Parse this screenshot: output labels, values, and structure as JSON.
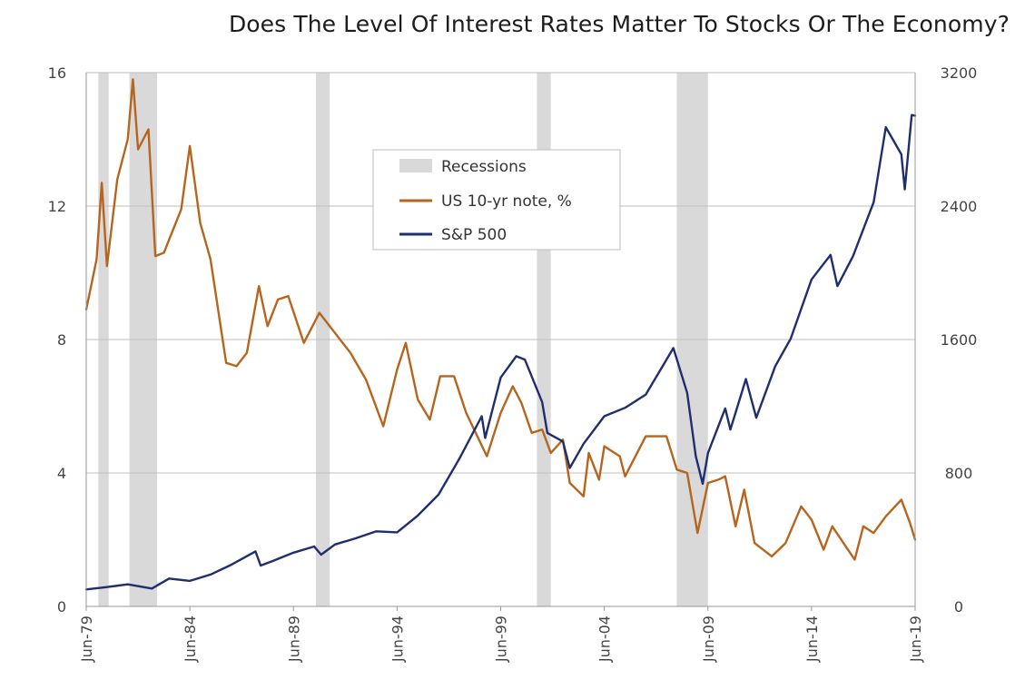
{
  "chart_data": {
    "type": "line",
    "title": "Does The Level Of Interest Rates Matter To Stocks Or The Economy?",
    "x_ticks": [
      "Jun-79",
      "Jun-84",
      "Jun-89",
      "Jun-94",
      "Jun-99",
      "Jun-04",
      "Jun-09",
      "Jun-14",
      "Jun-19"
    ],
    "xlim": [
      "1979-06",
      "2019-06"
    ],
    "y_left": {
      "ticks": [
        "0",
        "4",
        "8",
        "12",
        "16"
      ],
      "ylim": [
        0,
        16
      ]
    },
    "y_right": {
      "ticks": [
        "0",
        "800",
        "1600",
        "2400",
        "3200"
      ],
      "ylim": [
        0,
        3200
      ]
    },
    "grid": true,
    "legend": {
      "position": "top-center",
      "entries": [
        {
          "label": "Recessions",
          "color": "#d9d9d9",
          "kind": "box"
        },
        {
          "label": "US 10-yr note, %",
          "color": "#b5651d",
          "kind": "line"
        },
        {
          "label": "S&P 500",
          "color": "#1f2e6e",
          "kind": "line"
        }
      ]
    },
    "recessions": [
      {
        "start": "1980-01",
        "end": "1980-07"
      },
      {
        "start": "1981-07",
        "end": "1982-11"
      },
      {
        "start": "1990-07",
        "end": "1991-03"
      },
      {
        "start": "2001-03",
        "end": "2001-11"
      },
      {
        "start": "2007-12",
        "end": "2009-06"
      }
    ],
    "series": [
      {
        "name": "US 10-yr note, %",
        "axis": "left",
        "color": "#b5651d",
        "x": [
          "1979-06",
          "1979-12",
          "1980-03",
          "1980-06",
          "1980-12",
          "1981-06",
          "1981-09",
          "1981-12",
          "1982-06",
          "1982-10",
          "1983-03",
          "1983-06",
          "1984-01",
          "1984-06",
          "1984-12",
          "1985-06",
          "1986-03",
          "1986-09",
          "1987-03",
          "1987-10",
          "1988-03",
          "1988-09",
          "1989-03",
          "1989-12",
          "1990-09",
          "1991-06",
          "1992-03",
          "1992-12",
          "1993-10",
          "1994-06",
          "1994-11",
          "1995-06",
          "1996-01",
          "1996-07",
          "1997-03",
          "1997-10",
          "1998-10",
          "1999-06",
          "2000-01",
          "2000-06",
          "2000-12",
          "2001-06",
          "2001-11",
          "2002-06",
          "2002-10",
          "2003-06",
          "2003-09",
          "2004-03",
          "2004-06",
          "2005-03",
          "2005-06",
          "2006-06",
          "2007-06",
          "2007-12",
          "2008-06",
          "2008-12",
          "2009-06",
          "2009-12",
          "2010-04",
          "2010-10",
          "2011-03",
          "2011-09",
          "2012-07",
          "2013-03",
          "2013-12",
          "2014-06",
          "2015-01",
          "2015-06",
          "2016-07",
          "2016-12",
          "2017-06",
          "2018-01",
          "2018-10",
          "2019-03",
          "2019-06"
        ],
        "values": [
          8.9,
          10.4,
          12.7,
          10.2,
          12.8,
          14.0,
          15.8,
          13.7,
          14.3,
          10.5,
          10.6,
          11.0,
          11.9,
          13.8,
          11.5,
          10.4,
          7.3,
          7.2,
          7.6,
          9.6,
          8.4,
          9.2,
          9.3,
          7.9,
          8.8,
          8.2,
          7.6,
          6.8,
          5.4,
          7.1,
          7.9,
          6.2,
          5.6,
          6.9,
          6.9,
          5.8,
          4.5,
          5.8,
          6.6,
          6.1,
          5.2,
          5.3,
          4.6,
          5.0,
          3.7,
          3.3,
          4.6,
          3.8,
          4.8,
          4.5,
          3.9,
          5.1,
          5.1,
          4.1,
          4.0,
          2.2,
          3.7,
          3.8,
          3.9,
          2.4,
          3.5,
          1.9,
          1.5,
          1.9,
          3.0,
          2.6,
          1.7,
          2.4,
          1.4,
          2.4,
          2.2,
          2.7,
          3.2,
          2.5,
          2.0
        ]
      },
      {
        "name": "S&P 500",
        "axis": "right",
        "color": "#1f2e6e",
        "x": [
          "1979-06",
          "1980-06",
          "1981-06",
          "1982-08",
          "1983-06",
          "1984-06",
          "1985-06",
          "1986-06",
          "1987-08",
          "1987-11",
          "1988-06",
          "1989-06",
          "1990-06",
          "1990-10",
          "1991-06",
          "1992-06",
          "1993-06",
          "1994-06",
          "1995-06",
          "1996-06",
          "1997-06",
          "1998-07",
          "1998-09",
          "1999-06",
          "2000-03",
          "2000-08",
          "2001-06",
          "2001-09",
          "2002-06",
          "2002-10",
          "2003-06",
          "2004-06",
          "2005-06",
          "2006-06",
          "2007-10",
          "2008-06",
          "2008-11",
          "2009-03",
          "2009-06",
          "2010-04",
          "2010-07",
          "2011-04",
          "2011-10",
          "2012-09",
          "2013-06",
          "2014-06",
          "2015-05",
          "2015-09",
          "2016-06",
          "2017-06",
          "2018-01",
          "2018-10",
          "2018-12",
          "2019-04",
          "2019-06"
        ],
        "values": [
          102,
          116,
          132,
          107,
          167,
          153,
          191,
          250,
          330,
          245,
          272,
          322,
          359,
          310,
          371,
          408,
          450,
          444,
          545,
          670,
          885,
          1140,
          1010,
          1372,
          1500,
          1480,
          1224,
          1040,
          989,
          830,
          975,
          1140,
          1191,
          1270,
          1549,
          1280,
          900,
          735,
          919,
          1187,
          1060,
          1363,
          1131,
          1440,
          1606,
          1960,
          2107,
          1920,
          2099,
          2423,
          2873,
          2710,
          2500,
          2946,
          2942
        ]
      }
    ]
  }
}
